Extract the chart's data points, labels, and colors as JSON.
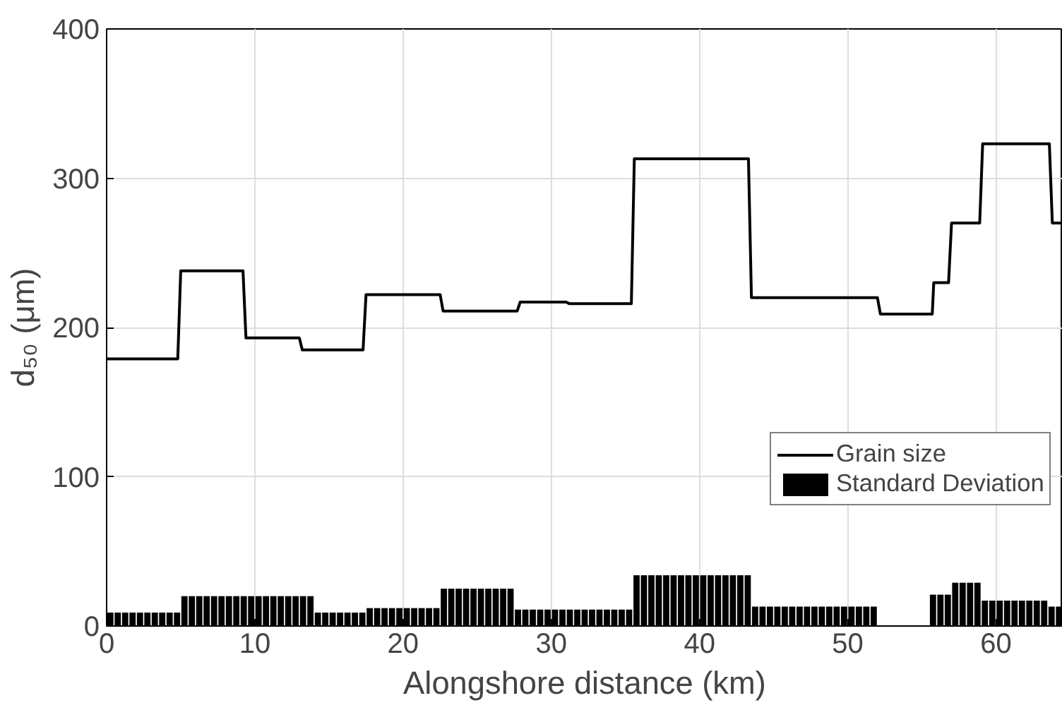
{
  "chart_data": {
    "type": "line",
    "xlabel": "Alongshore distance (km)",
    "ylabel": "d₅₀ (μm)",
    "xlim": [
      0,
      64.5
    ],
    "ylim": [
      0,
      400
    ],
    "xticks": [
      0,
      10,
      20,
      30,
      40,
      50,
      60
    ],
    "yticks": [
      0,
      100,
      200,
      300,
      400
    ],
    "grid": true,
    "legend": "right",
    "series": [
      {
        "name": "Grain size",
        "color": "#000000",
        "x": [
          0,
          4.8,
          5.0,
          9.2,
          9.4,
          13,
          13.2,
          17.3,
          17.5,
          22.5,
          22.7,
          27.7,
          27.9,
          31,
          31.2,
          35.4,
          35.6,
          43.3,
          43.5,
          52,
          52.2,
          55.7,
          55.8,
          56.8,
          57,
          58.9,
          59.1,
          63.6,
          63.8,
          64.5
        ],
        "values": [
          179,
          179,
          238,
          238,
          193,
          193,
          185,
          185,
          222,
          222,
          211,
          211,
          217,
          217,
          216,
          216,
          313,
          313,
          220,
          220,
          209,
          209,
          230,
          230,
          270,
          270,
          323,
          323,
          270,
          270
        ]
      },
      {
        "name": "Standard Deviation",
        "type": "bar",
        "color": "#000000",
        "x": [
          0.25,
          0.75,
          1.25,
          1.75,
          2.25,
          2.75,
          3.25,
          3.75,
          4.25,
          4.75,
          5.25,
          5.75,
          6.25,
          6.75,
          7.25,
          7.75,
          8.25,
          8.75,
          9.25,
          9.75,
          10.25,
          10.75,
          11.25,
          11.75,
          12.25,
          12.75,
          13.25,
          13.75,
          14.25,
          14.75,
          15.25,
          15.75,
          16.25,
          16.75,
          17.25,
          17.75,
          18.25,
          18.75,
          19.25,
          19.75,
          20.25,
          20.75,
          21.25,
          21.75,
          22.25,
          22.75,
          23.25,
          23.75,
          24.25,
          24.75,
          25.25,
          25.75,
          26.25,
          26.75,
          27.25,
          27.75,
          28.25,
          28.75,
          29.25,
          29.75,
          30.25,
          30.75,
          31.25,
          31.75,
          32.25,
          32.75,
          33.25,
          33.75,
          34.25,
          34.75,
          35.25,
          35.75,
          36.25,
          36.75,
          37.25,
          37.75,
          38.25,
          38.75,
          39.25,
          39.75,
          40.25,
          40.75,
          41.25,
          41.75,
          42.25,
          42.75,
          43.25,
          43.75,
          44.25,
          44.75,
          45.25,
          45.75,
          46.25,
          46.75,
          47.25,
          47.75,
          48.25,
          48.75,
          49.25,
          49.75,
          50.25,
          50.75,
          51.25,
          51.75,
          52.25,
          52.75,
          53.25,
          53.75,
          54.25,
          54.75,
          55.25,
          55.75,
          56.25,
          56.75,
          57.25,
          57.75,
          58.25,
          58.75,
          59.25,
          59.75,
          60.25,
          60.75,
          61.25,
          61.75,
          62.25,
          62.75,
          63.25,
          63.75,
          64.25
        ],
        "values": [
          9,
          9,
          9,
          9,
          9,
          9,
          9,
          9,
          9,
          9,
          20,
          20,
          20,
          20,
          20,
          20,
          20,
          20,
          20,
          20,
          20,
          20,
          20,
          20,
          20,
          20,
          20,
          20,
          9,
          9,
          9,
          9,
          9,
          9,
          9,
          12,
          12,
          12,
          12,
          12,
          12,
          12,
          12,
          12,
          12,
          25,
          25,
          25,
          25,
          25,
          25,
          25,
          25,
          25,
          25,
          11,
          11,
          11,
          11,
          11,
          11,
          11,
          11,
          11,
          11,
          11,
          11,
          11,
          11,
          11,
          11,
          34,
          34,
          34,
          34,
          34,
          34,
          34,
          34,
          34,
          34,
          34,
          34,
          34,
          34,
          34,
          34,
          13,
          13,
          13,
          13,
          13,
          13,
          13,
          13,
          13,
          13,
          13,
          13,
          13,
          13,
          13,
          13,
          13,
          null,
          null,
          null,
          null,
          null,
          null,
          null,
          21,
          21,
          21,
          29,
          29,
          29,
          29,
          17,
          17,
          17,
          17,
          17,
          17,
          17,
          17,
          17,
          13,
          13
        ]
      }
    ]
  }
}
